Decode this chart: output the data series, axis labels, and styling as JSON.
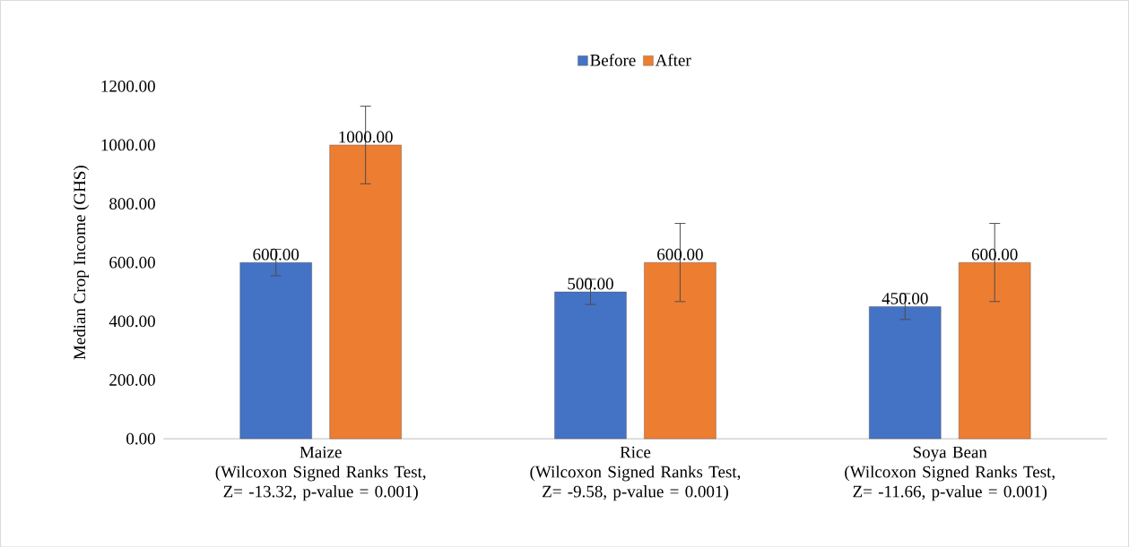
{
  "chart_data": {
    "type": "bar",
    "ylabel": "Median Crop Income (GHS)",
    "categories": [
      "Maize",
      "Rice",
      "Soya Bean"
    ],
    "annotations": [
      "(Wilcoxon Signed Ranks Test, Z= -13.32, p-value = 0.001)",
      "(Wilcoxon Signed Ranks Test, Z= -9.58, p-value = 0.001)",
      "(Wilcoxon Signed Ranks Test, Z= -11.66, p-value = 0.001)"
    ],
    "series": [
      {
        "name": "Before",
        "color": "#4472c4",
        "values": [
          600,
          500,
          450
        ],
        "errors": [
          45,
          43,
          44
        ],
        "value_labels": [
          "600.00",
          "500.00",
          "450.00"
        ]
      },
      {
        "name": "After",
        "color": "#ed7d31",
        "values": [
          1000,
          600,
          600
        ],
        "errors": [
          132,
          133,
          133
        ],
        "value_labels": [
          "1000.00",
          "600.00",
          "600.00"
        ]
      }
    ],
    "ylim": [
      0,
      1200
    ],
    "yticks": [
      {
        "value": 0,
        "label": "0.00"
      },
      {
        "value": 200,
        "label": "200.00"
      },
      {
        "value": 400,
        "label": "400.00"
      },
      {
        "value": 600,
        "label": "600.00"
      },
      {
        "value": 800,
        "label": "800.00"
      },
      {
        "value": 1000,
        "label": "1000.00"
      },
      {
        "value": 1200,
        "label": "1200.00"
      }
    ],
    "grid": false,
    "legend": "top"
  }
}
